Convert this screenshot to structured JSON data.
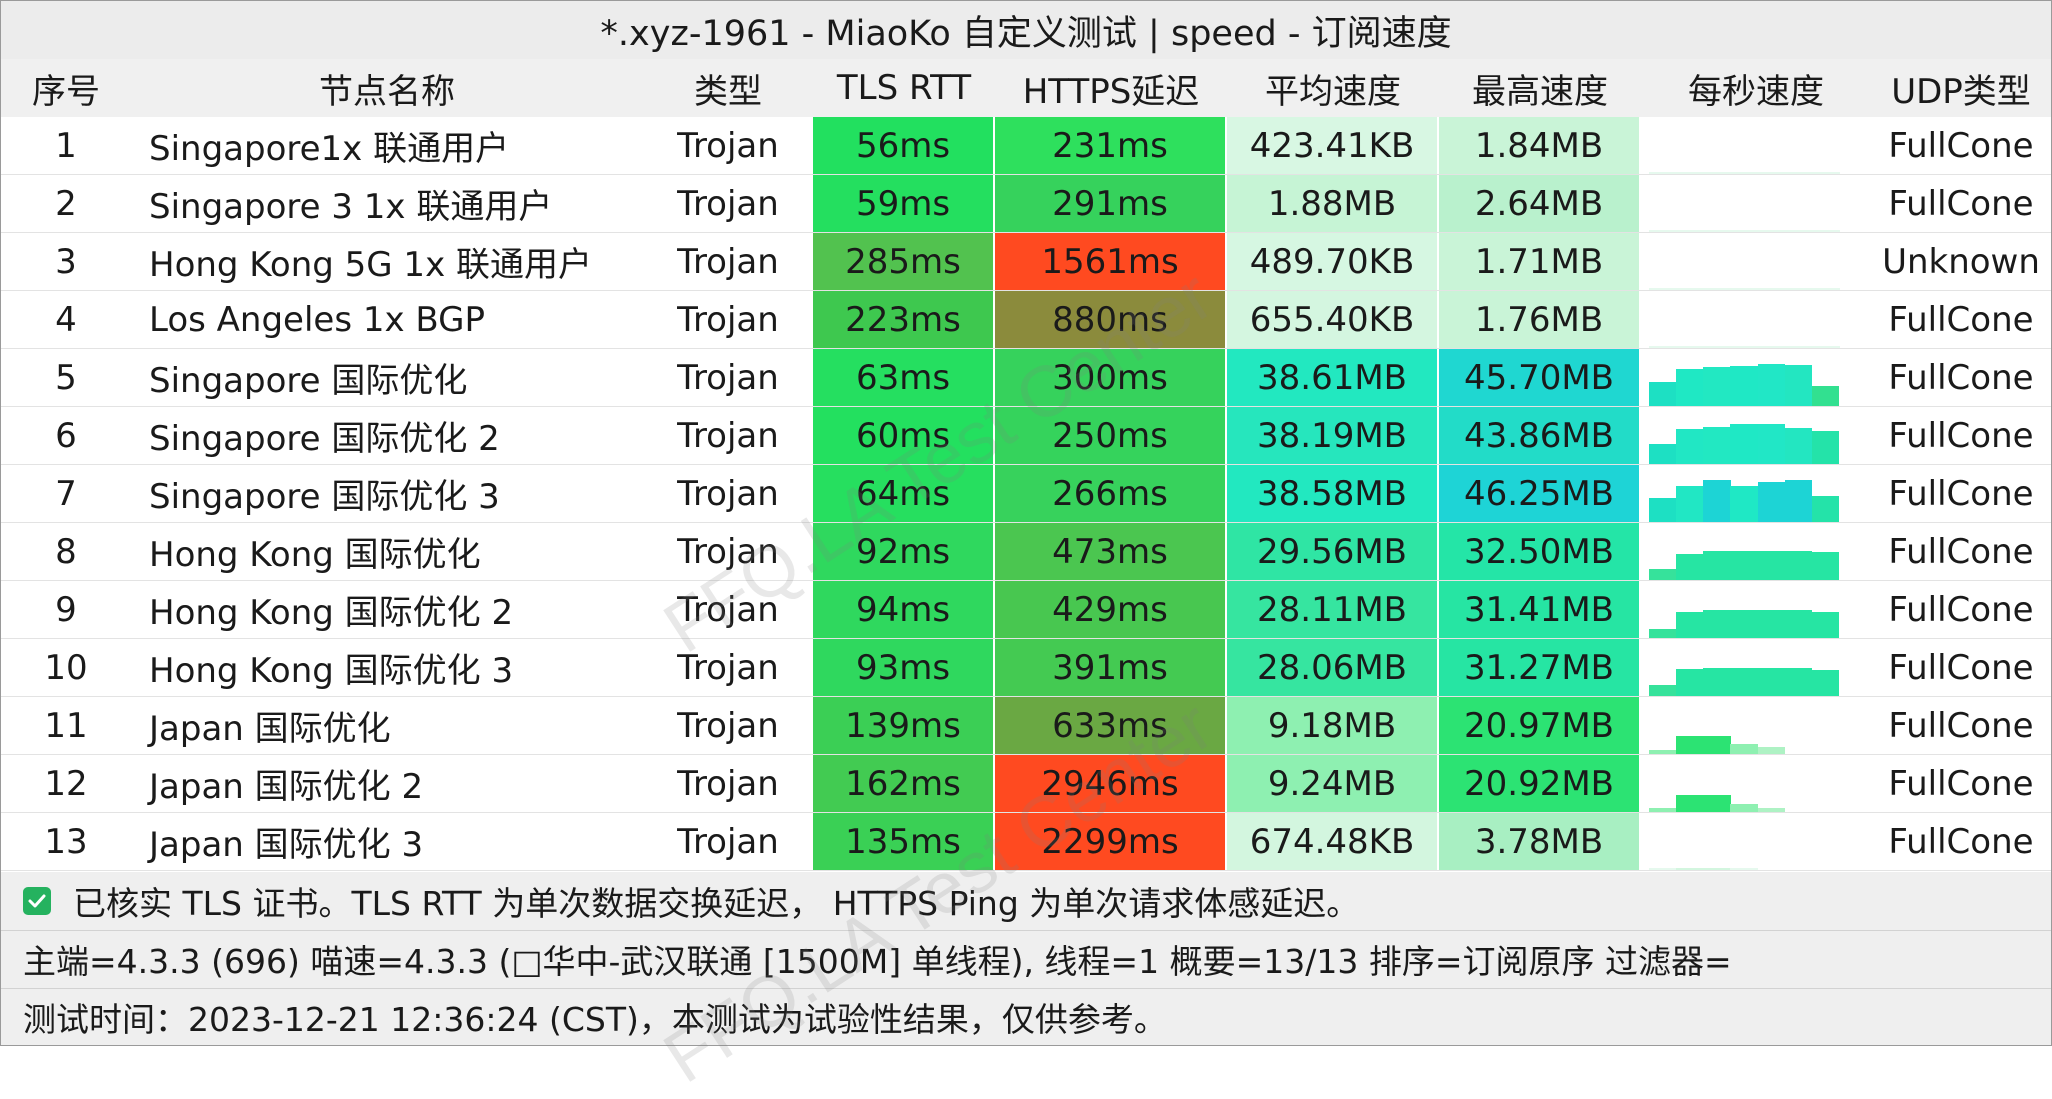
{
  "window": {
    "title": "*.xyz-1961 - MiaoKo 自定义测试 | speed - 订阅速度"
  },
  "columns": [
    "序号",
    "节点名称",
    "类型",
    "TLS RTT",
    "HTTPS延迟",
    "平均速度",
    "最高速度",
    "每秒速度",
    "UDP类型"
  ],
  "rows": [
    {
      "index": "1",
      "name": "Singapore1x 联通用户",
      "type": "Trojan",
      "tls_rtt": "56ms",
      "https_delay": "231ms",
      "avg_speed": "423.41KB",
      "max_speed": "1.84MB",
      "udp": "FullCone"
    },
    {
      "index": "2",
      "name": "Singapore 3 1x 联通用户",
      "type": "Trojan",
      "tls_rtt": "59ms",
      "https_delay": "291ms",
      "avg_speed": "1.88MB",
      "max_speed": "2.64MB",
      "udp": "FullCone"
    },
    {
      "index": "3",
      "name": "Hong Kong 5G   1x 联通用户",
      "type": "Trojan",
      "tls_rtt": "285ms",
      "https_delay": "1561ms",
      "avg_speed": "489.70KB",
      "max_speed": "1.71MB",
      "udp": "Unknown"
    },
    {
      "index": "4",
      "name": "Los Angeles 1x BGP",
      "type": "Trojan",
      "tls_rtt": "223ms",
      "https_delay": "880ms",
      "avg_speed": "655.40KB",
      "max_speed": "1.76MB",
      "udp": "FullCone"
    },
    {
      "index": "5",
      "name": "Singapore 国际优化",
      "type": "Trojan",
      "tls_rtt": "63ms",
      "https_delay": "300ms",
      "avg_speed": "38.61MB",
      "max_speed": "45.70MB",
      "udp": "FullCone"
    },
    {
      "index": "6",
      "name": "Singapore 国际优化 2",
      "type": "Trojan",
      "tls_rtt": "60ms",
      "https_delay": "250ms",
      "avg_speed": "38.19MB",
      "max_speed": "43.86MB",
      "udp": "FullCone"
    },
    {
      "index": "7",
      "name": "Singapore 国际优化 3",
      "type": "Trojan",
      "tls_rtt": "64ms",
      "https_delay": "266ms",
      "avg_speed": "38.58MB",
      "max_speed": "46.25MB",
      "udp": "FullCone"
    },
    {
      "index": "8",
      "name": "Hong Kong 国际优化",
      "type": "Trojan",
      "tls_rtt": "92ms",
      "https_delay": "473ms",
      "avg_speed": "29.56MB",
      "max_speed": "32.50MB",
      "udp": "FullCone"
    },
    {
      "index": "9",
      "name": "Hong Kong 国际优化 2",
      "type": "Trojan",
      "tls_rtt": "94ms",
      "https_delay": "429ms",
      "avg_speed": "28.11MB",
      "max_speed": "31.41MB",
      "udp": "FullCone"
    },
    {
      "index": "10",
      "name": "Hong Kong 国际优化 3",
      "type": "Trojan",
      "tls_rtt": "93ms",
      "https_delay": "391ms",
      "avg_speed": "28.06MB",
      "max_speed": "31.27MB",
      "udp": "FullCone"
    },
    {
      "index": "11",
      "name": "Japan 国际优化",
      "type": "Trojan",
      "tls_rtt": "139ms",
      "https_delay": "633ms",
      "avg_speed": "9.18MB",
      "max_speed": "20.97MB",
      "udp": "FullCone"
    },
    {
      "index": "12",
      "name": "Japan 国际优化 2",
      "type": "Trojan",
      "tls_rtt": "162ms",
      "https_delay": "2946ms",
      "avg_speed": "9.24MB",
      "max_speed": "20.92MB",
      "udp": "FullCone"
    },
    {
      "index": "13",
      "name": "Japan 国际优化 3",
      "type": "Trojan",
      "tls_rtt": "135ms",
      "https_delay": "2299ms",
      "avg_speed": "674.48KB",
      "max_speed": "3.78MB",
      "udp": "FullCone"
    }
  ],
  "colors": {
    "tls_rtt": [
      "#22e05f",
      "#24df5f",
      "#52c24f",
      "#3ec84f",
      "#25df60",
      "#23e05f",
      "#26df5f",
      "#2fd85e",
      "#2fd85e",
      "#2fd85e",
      "#3bcf55",
      "#42cb52",
      "#3ad055"
    ],
    "https_delay": [
      "#2ee05d",
      "#36d25c",
      "#ff4a20",
      "#8b8b3c",
      "#36d25c",
      "#35d35c",
      "#37d25c",
      "#4bc650",
      "#48c750",
      "#44ca52",
      "#6aa843",
      "#ff4a20",
      "#ff4a20"
    ],
    "avg_speed": [
      "#d8f7e3",
      "#c6f4d5",
      "#d6f7e2",
      "#d4f6e0",
      "#22e8c0",
      "#26e6bd",
      "#22e8c0",
      "#2fe5a4",
      "#36e5a0",
      "#36e5a0",
      "#8ef0b1",
      "#8ef0b1",
      "#d3f6df"
    ],
    "max_speed": [
      "#c9f4d7",
      "#b9f1cd",
      "#c9f4d7",
      "#c9f4d7",
      "#1fd7d1",
      "#22dcc8",
      "#1ed4d6",
      "#24e5a7",
      "#26e5a3",
      "#26e5a3",
      "#2ce373",
      "#2ce373",
      "#a8efc2"
    ],
    "footer_check": "#25b25f"
  },
  "sparklines": [
    [
      0.02,
      0.04,
      0.03,
      0.02
    ],
    [
      0.03,
      0.04,
      0.03,
      0.03
    ],
    [
      0.03,
      0.05,
      0.04,
      0.03
    ],
    [
      0.03,
      0.04,
      0.03,
      0.03
    ],
    [
      0.55,
      0.85,
      0.88,
      0.92,
      0.95,
      0.93,
      0.45
    ],
    [
      0.45,
      0.8,
      0.85,
      0.9,
      0.92,
      0.82,
      0.75
    ],
    [
      0.55,
      0.82,
      0.95,
      0.82,
      0.9,
      0.95,
      0.6
    ],
    [
      0.25,
      0.6,
      0.65,
      0.65,
      0.65,
      0.65,
      0.63
    ],
    [
      0.2,
      0.6,
      0.63,
      0.63,
      0.63,
      0.63,
      0.6
    ],
    [
      0.25,
      0.62,
      0.63,
      0.63,
      0.63,
      0.63,
      0.6
    ],
    [
      0.08,
      0.42,
      0.42,
      0.22,
      0.15,
      0.0,
      0.0
    ],
    [
      0.08,
      0.38,
      0.38,
      0.18,
      0.1,
      0.0,
      0.0
    ],
    [
      0.02,
      0.03,
      0.03,
      0.02,
      0.0,
      0.0,
      0.0
    ]
  ],
  "sparkline_colors": [
    [
      "#e6f9ee"
    ],
    [
      "#e6f9ee"
    ],
    [
      "#e6f9ee"
    ],
    [
      "#e6f9ee"
    ],
    [
      "#1de0c3",
      "#1fe8c4",
      "#22e8c2",
      "#1fe8c5",
      "#21e7c6",
      "#23e6c1",
      "#32e090"
    ],
    [
      "#1de0c3",
      "#21e7c4",
      "#22e8c2",
      "#1fe8c5",
      "#21e7c6",
      "#23e6c1",
      "#24e3a9"
    ],
    [
      "#1de0c3",
      "#21e7c4",
      "#1dd4d5",
      "#1fe8c5",
      "#1dd4d5",
      "#1dd4d5",
      "#24e3a9"
    ],
    [
      "#36e29b",
      "#26e5a3",
      "#26e5a3",
      "#26e5a3",
      "#26e5a3",
      "#26e5a3",
      "#26e5a3"
    ],
    [
      "#36e29b",
      "#26e5a3",
      "#26e5a3",
      "#26e5a3",
      "#26e5a3",
      "#26e5a3",
      "#26e5a3"
    ],
    [
      "#36e29b",
      "#26e5a3",
      "#26e5a3",
      "#26e5a3",
      "#26e5a3",
      "#26e5a3",
      "#26e5a3"
    ],
    [
      "#8ef0b1",
      "#2ce373",
      "#2ce373",
      "#8ef0b1",
      "#aef2c4",
      "#ffffff",
      "#ffffff"
    ],
    [
      "#8ef0b1",
      "#2ce373",
      "#2ce373",
      "#8ef0b1",
      "#aef2c4",
      "#ffffff",
      "#ffffff"
    ],
    [
      "#e6f9ee",
      "#d3f6df",
      "#d3f6df",
      "#e6f9ee",
      "#ffffff",
      "#ffffff",
      "#ffffff"
    ]
  ],
  "footer": {
    "line1": "已核实 TLS 证书。TLS RTT 为单次数据交换延迟，  HTTPS Ping 为单次请求体感延迟。",
    "line2": "主端=4.3.3 (696) 喵速=4.3.3 (□华中-武汉联通 [1500M] 单线程), 线程=1 概要=13/13 排序=订阅原序 过滤器=",
    "line3": "测试时间：2023-12-21 12:36:24 (CST)，本测试为试验性结果，仅供参考。"
  },
  "watermark": "FFQ.LA Test Center"
}
